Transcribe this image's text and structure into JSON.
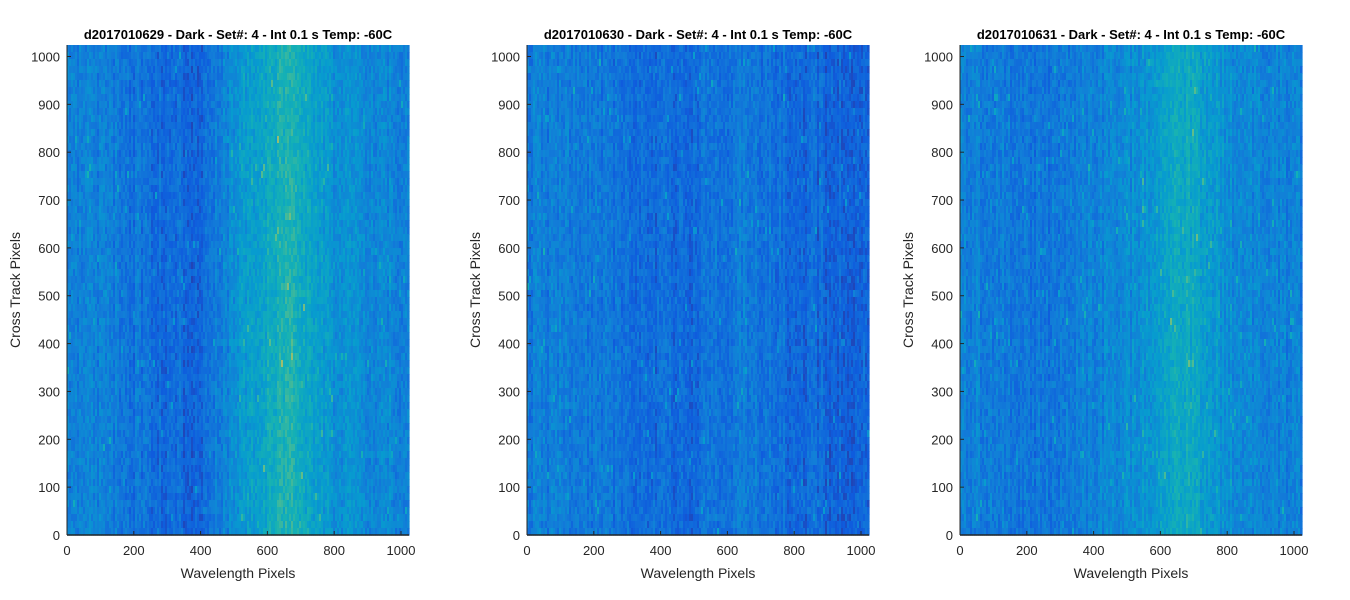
{
  "chart_data": [
    {
      "type": "heatmap",
      "title": "d2017010629 - Dark - Set#: 4 - Int 0.1 s Temp: -60C",
      "xlabel": "Wavelength Pixels",
      "ylabel": "Cross Track Pixels",
      "xlim": [
        0,
        1024
      ],
      "ylim": [
        0,
        1024
      ],
      "xticks": [
        0,
        200,
        400,
        600,
        800,
        1000
      ],
      "yticks": [
        0,
        100,
        200,
        300,
        400,
        500,
        600,
        700,
        800,
        900,
        1000
      ],
      "colormap": "parula",
      "column_profile": {
        "x": [
          0,
          100,
          200,
          300,
          400,
          450,
          500,
          550,
          600,
          650,
          700,
          750,
          800,
          900,
          1024
        ],
        "level": [
          0.32,
          0.3,
          0.26,
          0.22,
          0.2,
          0.3,
          0.38,
          0.46,
          0.54,
          0.62,
          0.56,
          0.46,
          0.4,
          0.36,
          0.34
        ]
      }
    },
    {
      "type": "heatmap",
      "title": "d2017010630 - Dark - Set#: 4 - Int 0.1 s Temp: -60C",
      "xlabel": "Wavelength Pixels",
      "ylabel": "Cross Track Pixels",
      "xlim": [
        0,
        1024
      ],
      "ylim": [
        0,
        1024
      ],
      "xticks": [
        0,
        200,
        400,
        600,
        800,
        1000
      ],
      "yticks": [
        0,
        100,
        200,
        300,
        400,
        500,
        600,
        700,
        800,
        900,
        1000
      ],
      "colormap": "parula",
      "column_profile": {
        "x": [
          0,
          100,
          200,
          300,
          400,
          500,
          600,
          650,
          700,
          800,
          900,
          1024
        ],
        "level": [
          0.3,
          0.3,
          0.28,
          0.24,
          0.22,
          0.22,
          0.26,
          0.3,
          0.26,
          0.22,
          0.2,
          0.18
        ]
      }
    },
    {
      "type": "heatmap",
      "title": "d2017010631 - Dark - Set#: 4 - Int 0.1 s Temp: -60C",
      "xlabel": "Wavelength Pixels",
      "ylabel": "Cross Track Pixels",
      "xlim": [
        0,
        1024
      ],
      "ylim": [
        0,
        1024
      ],
      "xticks": [
        0,
        200,
        400,
        600,
        800,
        1000
      ],
      "yticks": [
        0,
        100,
        200,
        300,
        400,
        500,
        600,
        700,
        800,
        900,
        1000
      ],
      "colormap": "parula",
      "column_profile": {
        "x": [
          0,
          100,
          200,
          300,
          400,
          500,
          600,
          650,
          700,
          750,
          800,
          900,
          1024
        ],
        "level": [
          0.32,
          0.3,
          0.26,
          0.28,
          0.32,
          0.36,
          0.46,
          0.56,
          0.52,
          0.44,
          0.38,
          0.34,
          0.32
        ]
      }
    }
  ]
}
